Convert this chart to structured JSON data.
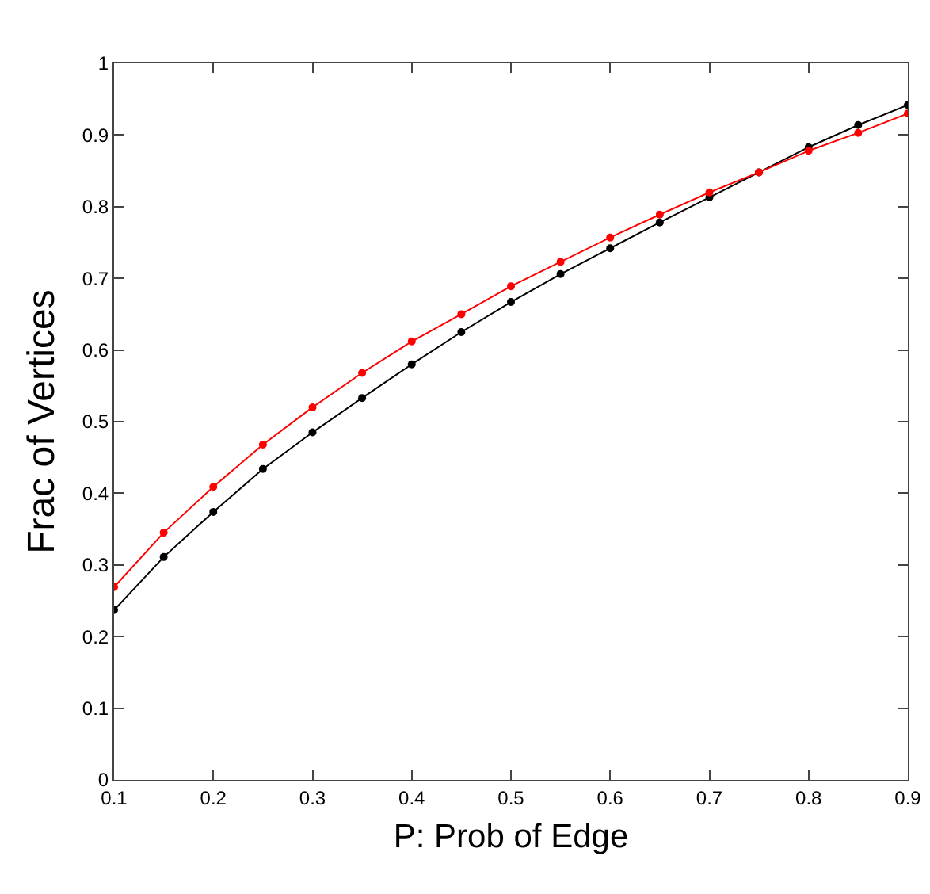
{
  "chart_data": {
    "type": "line",
    "xlabel": "P: Prob of Edge",
    "ylabel": "Frac of Vertices",
    "x": [
      0.1,
      0.15,
      0.2,
      0.25,
      0.3,
      0.35,
      0.4,
      0.45,
      0.5,
      0.55,
      0.6,
      0.65,
      0.7,
      0.75,
      0.8,
      0.85,
      0.9
    ],
    "series": [
      {
        "color": "#000000",
        "values": [
          0.237,
          0.311,
          0.374,
          0.434,
          0.485,
          0.533,
          0.58,
          0.625,
          0.667,
          0.706,
          0.742,
          0.778,
          0.813,
          0.848,
          0.883,
          0.914,
          0.942
        ]
      },
      {
        "color": "#ff0000",
        "values": [
          0.269,
          0.345,
          0.409,
          0.468,
          0.52,
          0.568,
          0.612,
          0.65,
          0.689,
          0.723,
          0.757,
          0.789,
          0.82,
          0.848,
          0.878,
          0.903,
          0.93
        ]
      }
    ],
    "xlim": [
      0.1,
      0.9
    ],
    "ylim": [
      0,
      1
    ],
    "xticks": [
      0.1,
      0.2,
      0.3,
      0.4,
      0.5,
      0.6,
      0.7,
      0.8,
      0.9
    ],
    "yticks": [
      0,
      0.1,
      0.2,
      0.3,
      0.4,
      0.5,
      0.6,
      0.7,
      0.8,
      0.9,
      1
    ],
    "grid": false,
    "marker": "circle",
    "line_style": "solid"
  }
}
